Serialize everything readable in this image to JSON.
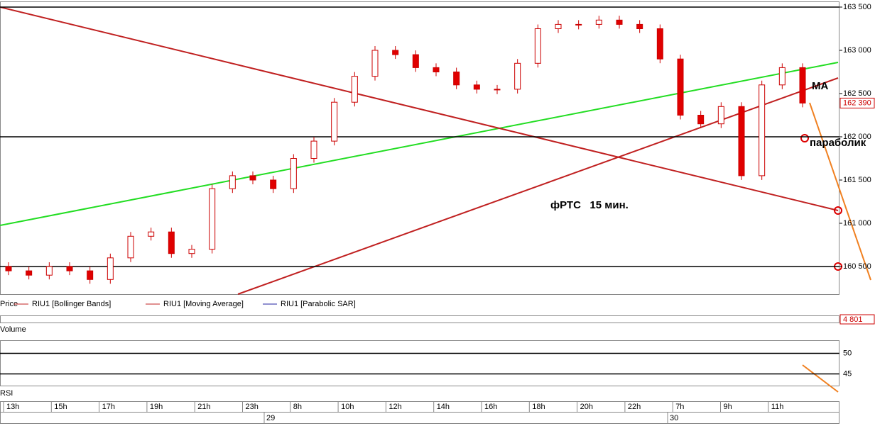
{
  "chart_data": {
    "type": "candlestick",
    "open": [
      160500,
      160450,
      160400,
      160500,
      160450,
      160350,
      160600,
      160850,
      160900,
      160650,
      160700,
      161400,
      161550,
      161500,
      161400,
      161750,
      161950,
      162400,
      162700,
      163000,
      162950,
      162800,
      162750,
      162600,
      162550,
      162550,
      162850,
      163250,
      163300,
      163300,
      163350,
      163300,
      163250,
      162900,
      162250,
      162150,
      162350,
      161550,
      162600,
      162800
    ],
    "close": [
      160450,
      160400,
      160500,
      160450,
      160350,
      160600,
      160850,
      160900,
      160650,
      160700,
      161400,
      161550,
      161500,
      161400,
      161750,
      161950,
      162400,
      162700,
      163000,
      162950,
      162800,
      162750,
      162600,
      162550,
      162550,
      162850,
      163250,
      163300,
      163300,
      163350,
      163300,
      163250,
      162900,
      162250,
      162150,
      162350,
      161550,
      162600,
      162800,
      162390
    ],
    "ylim": [
      160200,
      163600
    ],
    "yticks": [
      {
        "value": 163500,
        "label": "163 500"
      },
      {
        "value": 163000,
        "label": "163 000"
      },
      {
        "value": 162500,
        "label": "162 500"
      },
      {
        "value": 162000,
        "label": "162 000"
      },
      {
        "value": 161500,
        "label": "161 500"
      },
      {
        "value": 161000,
        "label": "161 000"
      },
      {
        "value": 160500,
        "label": "160 500"
      }
    ],
    "last_price": {
      "value": 162390,
      "label": "162 390"
    },
    "color_up": "#ffffff",
    "color_down": "#e00000",
    "legend": [
      "Price",
      "RIU1 [Bollinger Bands]",
      "RIU1 [Moving Average]",
      "RIU1 [Parabolic SAR]"
    ],
    "volume_panel": {
      "title": "Volume",
      "last": {
        "value": 4801,
        "label": "4 801"
      }
    },
    "rsi_panel": {
      "title": "RSI",
      "yticks": [
        50,
        45
      ],
      "ylim": [
        42,
        53
      ]
    },
    "time_labels": [
      "13h",
      "15h",
      "17h",
      "19h",
      "21h",
      "23h",
      "8h",
      "10h",
      "12h",
      "14h",
      "16h",
      "18h",
      "20h",
      "22h",
      "7h",
      "9h",
      "11h"
    ],
    "day_labels": [
      "29",
      "30"
    ],
    "annotations": [
      "MA",
      "параболик",
      "фРТС   15 мин."
    ]
  }
}
